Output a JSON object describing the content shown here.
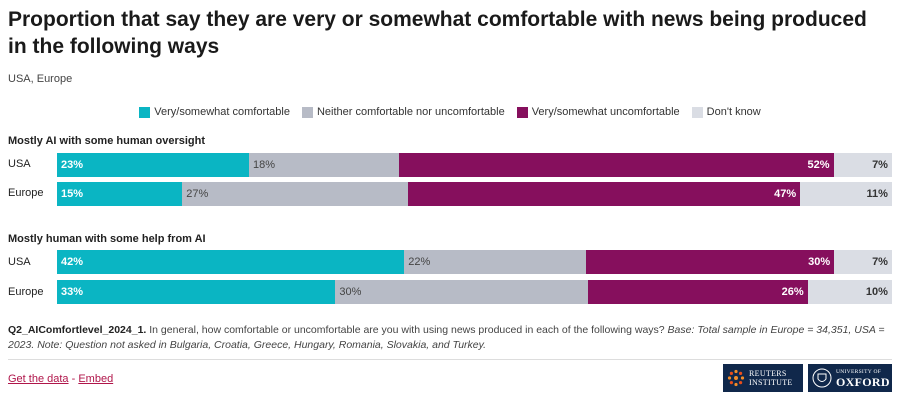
{
  "title": "Proportion that say they are very or somewhat comfortable with news being produced in the following ways",
  "subtitle": "USA, Europe",
  "colors": {
    "comfortable": "#0ab5c3",
    "neither": "#b7bbc6",
    "uncomfortable": "#860f5d",
    "dont_know": "#dadde4"
  },
  "chart_data": {
    "type": "bar",
    "orientation": "horizontal-stacked-100",
    "legend": [
      "Very/somewhat comfortable",
      "Neither comfortable nor uncomfortable",
      "Very/somewhat uncomfortable",
      "Don't know"
    ],
    "groups": [
      {
        "title": "Mostly AI with some human oversight",
        "rows": [
          {
            "label": "USA",
            "values": [
              23,
              18,
              52,
              7
            ]
          },
          {
            "label": "Europe",
            "values": [
              15,
              27,
              47,
              11
            ]
          }
        ]
      },
      {
        "title": "Mostly human with some help from AI",
        "rows": [
          {
            "label": "USA",
            "values": [
              42,
              22,
              30,
              7
            ]
          },
          {
            "label": "Europe",
            "values": [
              33,
              30,
              26,
              10
            ]
          }
        ]
      }
    ]
  },
  "footnote": {
    "code": "Q2_AIComfortlevel_2024_1.",
    "question": " In general, how comfortable or uncomfortable are you with using news produced in each of the following ways? ",
    "base": "Base: Total sample in Europe = 34,351, USA = 2023. Note: Question not asked in Bulgaria, Croatia, Greece, Hungary, Romania, Slovakia, and Turkey."
  },
  "links": {
    "get_data": "Get the data",
    "separator": " - ",
    "embed": "Embed"
  },
  "logos": {
    "reuters_line1": "REUTERS",
    "reuters_line2": "INSTITUTE",
    "oxford_line1": "UNIVERSITY OF",
    "oxford_line2": "OXFORD"
  }
}
